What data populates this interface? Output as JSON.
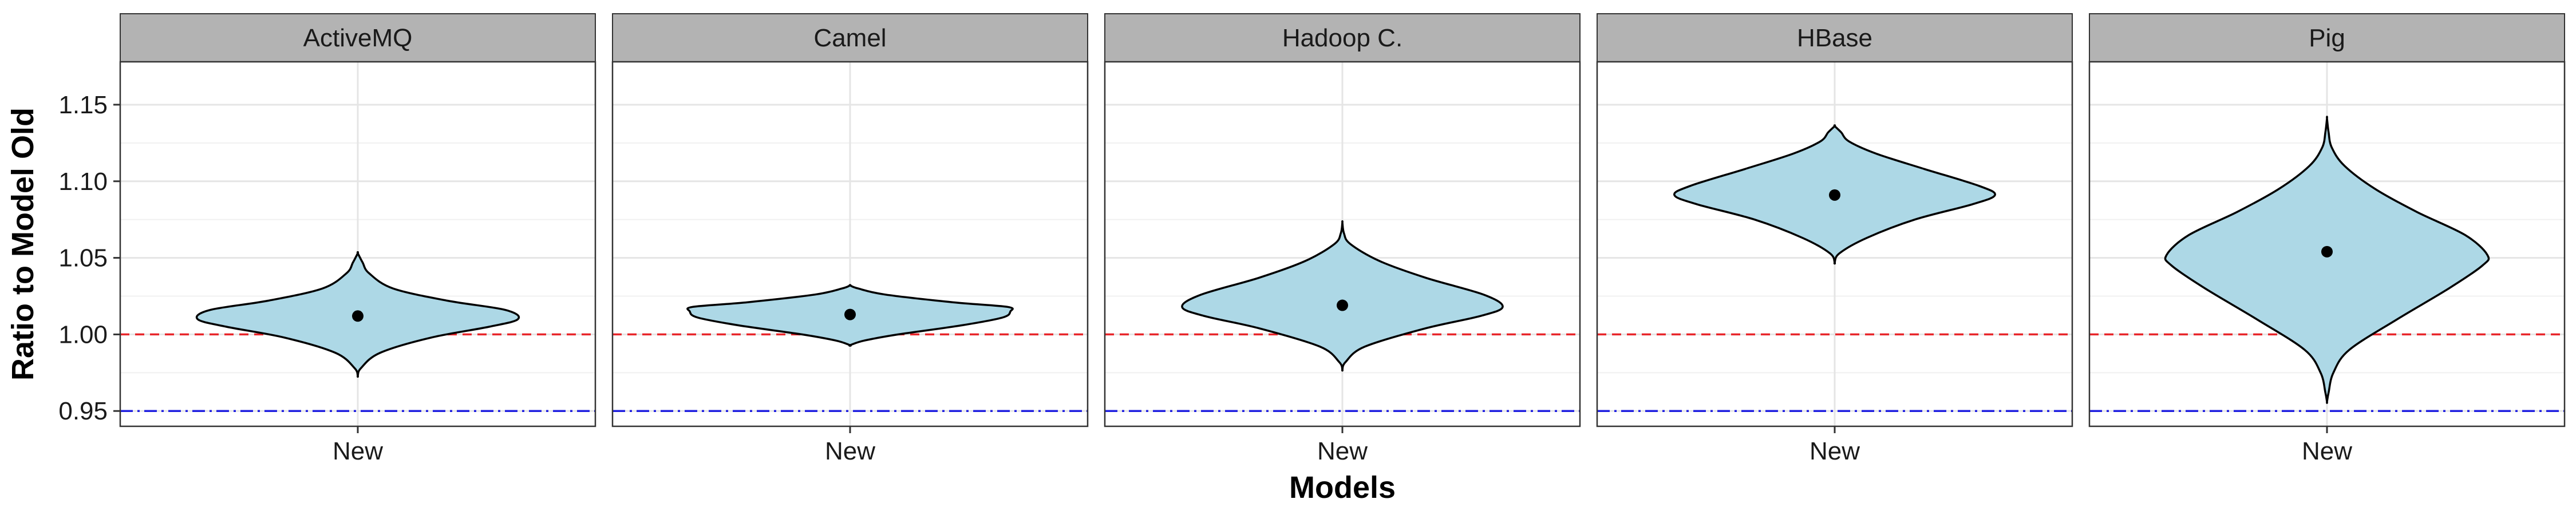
{
  "chart_data": {
    "type": "violin",
    "xlabel": "Models",
    "ylabel": "Ratio to Model Old",
    "ylim": [
      0.94,
      1.178
    ],
    "y_ticks": [
      0.95,
      1.0,
      1.05,
      1.1,
      1.15
    ],
    "y_tick_labels": [
      "0.95",
      "1.00",
      "1.05",
      "1.10",
      "1.15"
    ],
    "category": "New",
    "reference_lines": [
      {
        "value": 1.0,
        "style": "dashed",
        "color": "#e8262b"
      },
      {
        "value": 0.95,
        "style": "dot-dash",
        "color": "#1f1fe0"
      }
    ],
    "grid": true,
    "colors": {
      "fill": "#add8e6",
      "outline": "#000000",
      "strip_bg": "#b3b3b3",
      "grid": "#e5e5e5",
      "panel_border": "#333333"
    },
    "panels": [
      {
        "name": "ActiveMQ",
        "mean": 1.012,
        "profile": [
          [
            0.973,
            0.0
          ],
          [
            0.978,
            0.02
          ],
          [
            0.988,
            0.14
          ],
          [
            0.998,
            0.46
          ],
          [
            1.005,
            0.82
          ],
          [
            1.01,
            1.0
          ],
          [
            1.016,
            0.92
          ],
          [
            1.022,
            0.56
          ],
          [
            1.03,
            0.22
          ],
          [
            1.04,
            0.07
          ],
          [
            1.047,
            0.03
          ],
          [
            1.053,
            0.0
          ]
        ]
      },
      {
        "name": "Camel",
        "mean": 1.013,
        "profile": [
          [
            0.993,
            0.0
          ],
          [
            0.996,
            0.09
          ],
          [
            1.0,
            0.3
          ],
          [
            1.006,
            0.7
          ],
          [
            1.011,
            0.95
          ],
          [
            1.015,
            1.0
          ],
          [
            1.018,
            0.98
          ],
          [
            1.021,
            0.64
          ],
          [
            1.026,
            0.22
          ],
          [
            1.03,
            0.05
          ],
          [
            1.032,
            0.0
          ]
        ]
      },
      {
        "name": "Hadoop C.",
        "mean": 1.019,
        "profile": [
          [
            0.977,
            0.0
          ],
          [
            0.982,
            0.02
          ],
          [
            0.992,
            0.14
          ],
          [
            1.004,
            0.52
          ],
          [
            1.012,
            0.86
          ],
          [
            1.018,
            1.0
          ],
          [
            1.026,
            0.88
          ],
          [
            1.037,
            0.52
          ],
          [
            1.048,
            0.23
          ],
          [
            1.059,
            0.05
          ],
          [
            1.066,
            0.01
          ],
          [
            1.073,
            0.0
          ]
        ]
      },
      {
        "name": "HBase",
        "mean": 1.091,
        "profile": [
          [
            1.047,
            0.0
          ],
          [
            1.053,
            0.03
          ],
          [
            1.063,
            0.2
          ],
          [
            1.075,
            0.5
          ],
          [
            1.085,
            0.86
          ],
          [
            1.091,
            1.0
          ],
          [
            1.097,
            0.9
          ],
          [
            1.108,
            0.56
          ],
          [
            1.118,
            0.26
          ],
          [
            1.126,
            0.09
          ],
          [
            1.132,
            0.04
          ],
          [
            1.136,
            0.0
          ]
        ]
      },
      {
        "name": "Pig",
        "mean": 1.054,
        "profile": [
          [
            0.956,
            0.0
          ],
          [
            0.962,
            0.01
          ],
          [
            0.975,
            0.04
          ],
          [
            0.99,
            0.14
          ],
          [
            1.01,
            0.44
          ],
          [
            1.03,
            0.76
          ],
          [
            1.045,
            0.97
          ],
          [
            1.052,
            1.0
          ],
          [
            1.065,
            0.86
          ],
          [
            1.08,
            0.56
          ],
          [
            1.095,
            0.3
          ],
          [
            1.11,
            0.11
          ],
          [
            1.122,
            0.03
          ],
          [
            1.132,
            0.01
          ],
          [
            1.141,
            0.0
          ]
        ]
      }
    ]
  }
}
